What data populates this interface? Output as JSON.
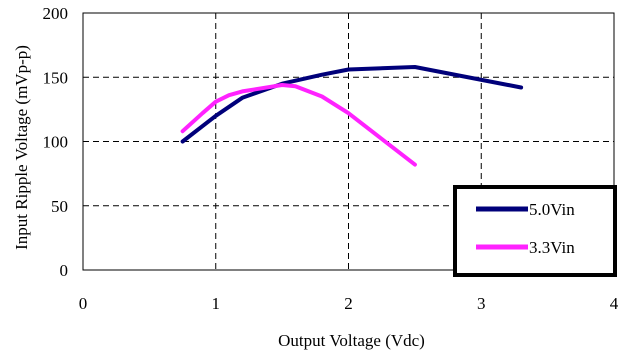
{
  "chart_data": {
    "type": "line",
    "title": "",
    "xlabel": "Output Voltage (Vdc)",
    "ylabel": "Input Ripple Voltage (mVp-p)",
    "xlim": [
      0,
      4
    ],
    "ylim": [
      0,
      200
    ],
    "xticks": [
      0,
      1,
      2,
      3,
      4
    ],
    "yticks": [
      0,
      50,
      100,
      150,
      200
    ],
    "x_tick_labels": [
      "0",
      "1",
      "2",
      "3",
      "4"
    ],
    "y_tick_labels": [
      "0",
      "50",
      "100",
      "150",
      "200"
    ],
    "grid": "dashed",
    "legend_position": "bottom-right",
    "series": [
      {
        "name": "5.0Vin",
        "color": "#00007a",
        "x": [
          0.75,
          1.0,
          1.2,
          1.5,
          1.8,
          2.0,
          2.5,
          3.3
        ],
        "y": [
          100,
          120,
          134,
          145,
          152,
          156,
          158,
          142
        ]
      },
      {
        "name": "3.3Vin",
        "color": "#ff22ff",
        "x": [
          0.75,
          0.9,
          1.0,
          1.1,
          1.2,
          1.5,
          1.6,
          1.8,
          2.0,
          2.5
        ],
        "y": [
          108,
          122,
          131,
          136,
          139,
          144,
          143,
          135,
          122,
          82
        ]
      }
    ]
  }
}
